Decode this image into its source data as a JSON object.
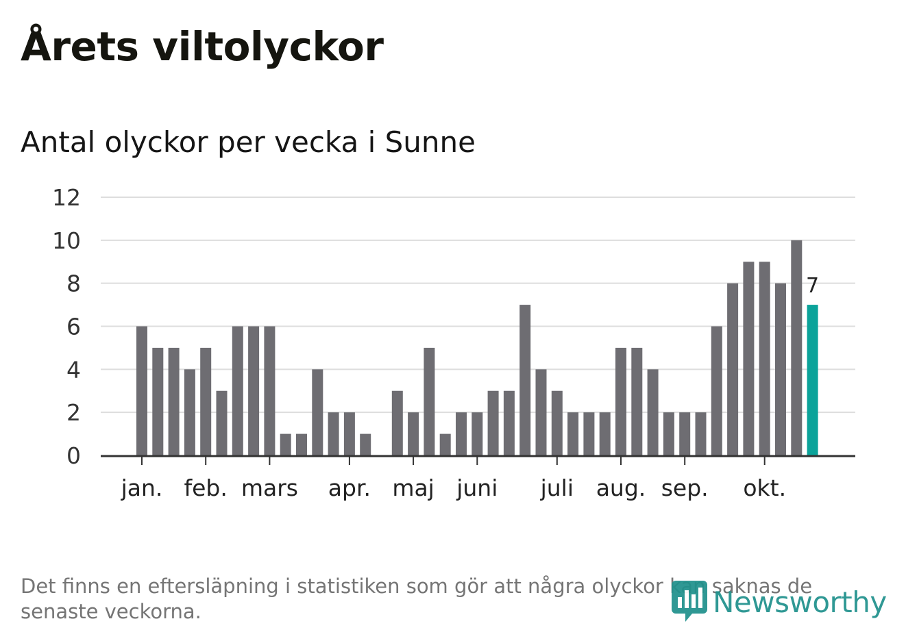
{
  "title": "Årets viltolyckor",
  "subtitle": "Antal olyckor per vecka i Sunne",
  "footnote": "Det finns en eftersläpning i statistiken som gör att några olyckor kan saknas de senaste veckorna.",
  "logo_text": "Newsworthy",
  "colors": {
    "bar": "#6e6d72",
    "highlight": "#0ba39a",
    "grid": "#dddddd",
    "axis": "#333333"
  },
  "chart_data": {
    "type": "bar",
    "title": "Årets viltolyckor",
    "subtitle": "Antal olyckor per vecka i Sunne",
    "ylim": [
      0,
      12
    ],
    "yticks": [
      0,
      2,
      4,
      6,
      8,
      10,
      12
    ],
    "grid": true,
    "values": [
      6,
      5,
      5,
      4,
      5,
      3,
      6,
      6,
      6,
      1,
      1,
      4,
      2,
      2,
      1,
      0,
      3,
      2,
      5,
      1,
      2,
      2,
      3,
      3,
      7,
      4,
      3,
      2,
      2,
      2,
      5,
      5,
      4,
      2,
      2,
      2,
      6,
      8,
      9,
      9,
      8,
      10,
      7
    ],
    "month_labels": [
      {
        "label": "jan.",
        "week_index": 0
      },
      {
        "label": "feb.",
        "week_index": 4
      },
      {
        "label": "mars",
        "week_index": 8
      },
      {
        "label": "apr.",
        "week_index": 13
      },
      {
        "label": "maj",
        "week_index": 17
      },
      {
        "label": "juni",
        "week_index": 21
      },
      {
        "label": "juli",
        "week_index": 26
      },
      {
        "label": "aug.",
        "week_index": 30
      },
      {
        "label": "sep.",
        "week_index": 34
      },
      {
        "label": "okt.",
        "week_index": 39
      }
    ],
    "highlight_last": true,
    "last_value_label": "7"
  }
}
